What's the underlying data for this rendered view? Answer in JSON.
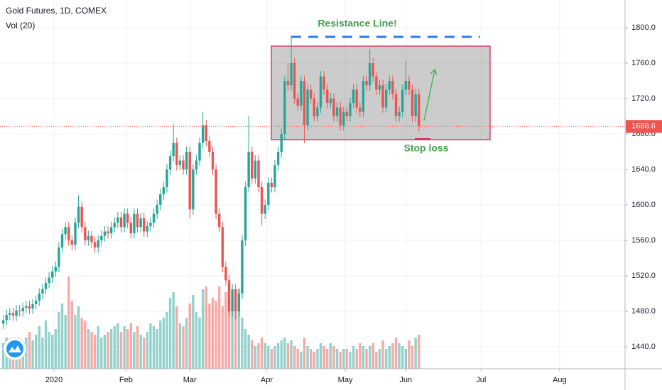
{
  "chart_data": {
    "type": "candlestick",
    "title": "Gold Futures, 1D, COMEX",
    "volume_label": "Vol (20)",
    "annotations": [
      "Resistance Line!",
      "Stop loss"
    ],
    "up_color": "#26a69a",
    "down_color": "#ef5350",
    "open": [
      1466,
      1470,
      1476,
      1478,
      1475,
      1481,
      1480,
      1484,
      1486,
      1483,
      1488,
      1492,
      1500,
      1505,
      1512,
      1518,
      1525,
      1530,
      1552,
      1567,
      1575,
      1560,
      1555,
      1580,
      1598,
      1575,
      1560,
      1565,
      1558,
      1552,
      1560,
      1565,
      1570,
      1568,
      1575,
      1580,
      1586,
      1575,
      1590,
      1580,
      1568,
      1590,
      1575,
      1585,
      1570,
      1576,
      1580,
      1590,
      1600,
      1612,
      1620,
      1640,
      1655,
      1670,
      1645,
      1650,
      1640,
      1660,
      1595,
      1640,
      1650,
      1670,
      1690,
      1672,
      1660,
      1640,
      1590,
      1575,
      1530,
      1515,
      1480,
      1505,
      1480,
      1500,
      1560,
      1620,
      1660,
      1630,
      1650,
      1620,
      1590,
      1600,
      1625,
      1620,
      1645,
      1660,
      1680,
      1740,
      1735,
      1760,
      1720,
      1712,
      1740,
      1690,
      1730,
      1720,
      1700,
      1710,
      1745,
      1730,
      1715,
      1720,
      1700,
      1710,
      1690,
      1705,
      1700,
      1715,
      1730,
      1710,
      1705,
      1740,
      1735,
      1760,
      1745,
      1730,
      1735,
      1710,
      1730,
      1740,
      1725,
      1700,
      1705,
      1730,
      1740,
      1730,
      1700,
      1725
    ],
    "high": [
      1476,
      1482,
      1484,
      1484,
      1487,
      1487,
      1490,
      1492,
      1492,
      1494,
      1498,
      1506,
      1511,
      1518,
      1524,
      1531,
      1536,
      1558,
      1573,
      1581,
      1581,
      1566,
      1586,
      1611,
      1604,
      1581,
      1571,
      1571,
      1564,
      1566,
      1571,
      1576,
      1576,
      1581,
      1586,
      1592,
      1592,
      1596,
      1596,
      1586,
      1596,
      1596,
      1591,
      1591,
      1582,
      1586,
      1596,
      1606,
      1618,
      1626,
      1646,
      1661,
      1691,
      1676,
      1656,
      1656,
      1666,
      1666,
      1646,
      1656,
      1676,
      1705,
      1696,
      1678,
      1666,
      1646,
      1596,
      1581,
      1536,
      1521,
      1511,
      1511,
      1506,
      1566,
      1626,
      1700,
      1666,
      1656,
      1656,
      1626,
      1606,
      1631,
      1631,
      1651,
      1666,
      1686,
      1746,
      1760,
      1790,
      1766,
      1726,
      1746,
      1746,
      1736,
      1736,
      1726,
      1716,
      1751,
      1751,
      1736,
      1726,
      1726,
      1716,
      1716,
      1711,
      1711,
      1721,
      1736,
      1736,
      1716,
      1746,
      1746,
      1776,
      1766,
      1751,
      1741,
      1741,
      1736,
      1746,
      1746,
      1731,
      1711,
      1736,
      1762,
      1746,
      1736,
      1731,
      1731
    ],
    "low": [
      1460,
      1464,
      1470,
      1469,
      1469,
      1474,
      1474,
      1478,
      1477,
      1477,
      1482,
      1486,
      1494,
      1499,
      1506,
      1512,
      1519,
      1524,
      1546,
      1561,
      1554,
      1549,
      1549,
      1574,
      1569,
      1554,
      1554,
      1552,
      1546,
      1546,
      1554,
      1559,
      1562,
      1562,
      1569,
      1574,
      1569,
      1569,
      1574,
      1562,
      1562,
      1569,
      1569,
      1564,
      1564,
      1570,
      1574,
      1584,
      1594,
      1606,
      1614,
      1634,
      1649,
      1639,
      1639,
      1634,
      1634,
      1585,
      1589,
      1634,
      1644,
      1664,
      1666,
      1654,
      1634,
      1584,
      1569,
      1524,
      1509,
      1474,
      1474,
      1471,
      1474,
      1494,
      1554,
      1614,
      1624,
      1624,
      1614,
      1577,
      1584,
      1594,
      1614,
      1614,
      1639,
      1654,
      1674,
      1729,
      1729,
      1714,
      1706,
      1706,
      1670,
      1684,
      1714,
      1694,
      1694,
      1704,
      1724,
      1709,
      1709,
      1694,
      1694,
      1684,
      1684,
      1694,
      1694,
      1709,
      1704,
      1699,
      1699,
      1729,
      1729,
      1739,
      1724,
      1724,
      1704,
      1704,
      1724,
      1719,
      1694,
      1694,
      1699,
      1724,
      1724,
      1694,
      1694,
      1683
    ],
    "close": [
      1470,
      1476,
      1478,
      1475,
      1481,
      1480,
      1484,
      1486,
      1483,
      1488,
      1492,
      1500,
      1505,
      1512,
      1518,
      1525,
      1530,
      1552,
      1567,
      1575,
      1560,
      1555,
      1580,
      1598,
      1575,
      1560,
      1565,
      1558,
      1552,
      1560,
      1565,
      1570,
      1568,
      1575,
      1580,
      1586,
      1575,
      1590,
      1580,
      1568,
      1590,
      1575,
      1585,
      1570,
      1576,
      1580,
      1590,
      1600,
      1612,
      1620,
      1640,
      1655,
      1670,
      1645,
      1650,
      1640,
      1660,
      1595,
      1640,
      1650,
      1670,
      1690,
      1672,
      1660,
      1640,
      1590,
      1575,
      1530,
      1515,
      1480,
      1505,
      1480,
      1500,
      1560,
      1620,
      1660,
      1630,
      1650,
      1620,
      1590,
      1600,
      1625,
      1620,
      1645,
      1660,
      1680,
      1740,
      1735,
      1760,
      1720,
      1712,
      1740,
      1690,
      1730,
      1720,
      1700,
      1710,
      1745,
      1730,
      1715,
      1720,
      1700,
      1710,
      1690,
      1705,
      1700,
      1715,
      1730,
      1710,
      1705,
      1740,
      1735,
      1760,
      1745,
      1730,
      1735,
      1710,
      1730,
      1740,
      1725,
      1700,
      1705,
      1730,
      1740,
      1730,
      1700,
      1725,
      1689
    ],
    "volume": [
      90,
      110,
      80,
      100,
      70,
      60,
      90,
      110,
      130,
      100,
      120,
      150,
      110,
      170,
      130,
      120,
      140,
      200,
      230,
      190,
      325,
      240,
      190,
      220,
      180,
      170,
      140,
      130,
      120,
      150,
      110,
      120,
      130,
      140,
      150,
      160,
      130,
      150,
      140,
      160,
      130,
      150,
      120,
      110,
      130,
      160,
      150,
      140,
      170,
      180,
      200,
      250,
      270,
      220,
      160,
      150,
      180,
      230,
      260,
      200,
      180,
      280,
      290,
      230,
      250,
      240,
      290,
      220,
      270,
      300,
      250,
      210,
      280,
      180,
      140,
      120,
      100,
      80,
      90,
      110,
      90,
      80,
      70,
      80,
      90,
      100,
      110,
      90,
      100,
      80,
      70,
      60,
      110,
      80,
      70,
      60,
      70,
      90,
      80,
      70,
      90,
      80,
      70,
      60,
      70,
      70,
      60,
      80,
      70,
      90,
      80,
      70,
      80,
      90,
      60,
      70,
      100,
      70,
      80,
      90,
      110,
      90,
      80,
      70,
      100,
      80,
      110,
      120
    ],
    "volume_lim": [
      0,
      400
    ],
    "last_price": 1688.6,
    "xlim": [
      -1,
      190
    ],
    "xticks": [
      {
        "value": 15.5,
        "label": "2020"
      },
      {
        "value": 37.5,
        "label": "Feb"
      },
      {
        "value": 57,
        "label": "Mar"
      },
      {
        "value": 80.5,
        "label": "Apr"
      },
      {
        "value": 104.5,
        "label": "May"
      },
      {
        "value": 123,
        "label": "Jun"
      },
      {
        "value": 146,
        "label": "Jul"
      },
      {
        "value": 170,
        "label": "Aug"
      }
    ],
    "ylim": [
      1415.2,
      1831.2
    ],
    "yticks": [
      {
        "value": 1440,
        "label": "1440.0"
      },
      {
        "value": 1480,
        "label": "1480.0"
      },
      {
        "value": 1520,
        "label": "1520.0"
      },
      {
        "value": 1560,
        "label": "1560.0"
      },
      {
        "value": 1600,
        "label": "1600.0"
      },
      {
        "value": 1640,
        "label": "1640.0"
      },
      {
        "value": 1680,
        "label": "1680.0"
      },
      {
        "value": 1720,
        "label": "1720.0"
      },
      {
        "value": 1760,
        "label": "1760.0"
      },
      {
        "value": 1800,
        "label": "1800.0"
      }
    ],
    "grid": true
  }
}
